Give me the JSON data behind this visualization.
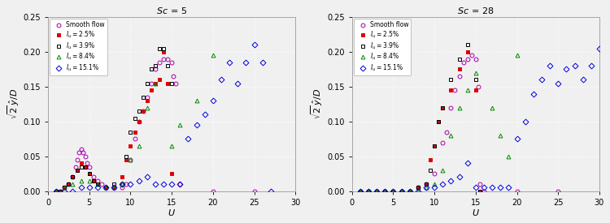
{
  "title_left": "Sc = 5",
  "title_right": "Sc = 28",
  "xlabel": "U",
  "xlim": [
    0,
    30
  ],
  "ylim": [
    0,
    0.25
  ],
  "xticks": [
    0,
    5,
    10,
    15,
    20,
    25,
    30
  ],
  "yticks": [
    0,
    0.05,
    0.1,
    0.15,
    0.2,
    0.25
  ],
  "legend_labels": [
    "Smooth flow",
    "I_u = 2.5%",
    "I_u = 3.9%",
    "I_u = 8.4%",
    "I_u = 15.1%"
  ],
  "colors": [
    "#aa00aa",
    "#dd0000",
    "#000000",
    "#008800",
    "#0000dd"
  ],
  "markers": [
    "o",
    "s",
    "s",
    "^",
    "D"
  ],
  "markerfacecolors": [
    "none",
    "#dd0000",
    "none",
    "none",
    "none"
  ],
  "sc5": {
    "smooth": {
      "U": [
        1.0,
        1.5,
        2.0,
        2.5,
        3.0,
        3.3,
        3.5,
        3.7,
        4.0,
        4.2,
        4.5,
        4.7,
        5.0,
        5.5,
        6.0,
        6.5,
        7.0,
        8.0,
        9.0,
        9.5,
        10.0,
        10.5,
        11.0,
        11.5,
        12.0,
        12.5,
        13.0,
        13.5,
        14.0,
        14.5,
        15.0,
        15.2,
        15.5,
        16.0,
        20.0,
        25.0
      ],
      "A": [
        0.0,
        0.0,
        0.005,
        0.01,
        0.02,
        0.035,
        0.045,
        0.055,
        0.06,
        0.055,
        0.05,
        0.04,
        0.035,
        0.02,
        0.015,
        0.01,
        0.005,
        0.005,
        0.005,
        0.01,
        0.045,
        0.075,
        0.1,
        0.115,
        0.135,
        0.155,
        0.175,
        0.185,
        0.19,
        0.19,
        0.185,
        0.165,
        0.155,
        0.01,
        0.0,
        0.0
      ]
    },
    "Iu25": {
      "U": [
        1.0,
        1.5,
        2.0,
        2.5,
        3.0,
        3.5,
        4.0,
        4.5,
        5.0,
        5.5,
        6.0,
        7.0,
        8.0,
        9.0,
        9.5,
        10.0,
        10.5,
        11.0,
        11.5,
        12.0,
        12.5,
        13.0,
        13.5,
        14.0,
        14.5,
        15.0
      ],
      "A": [
        0.0,
        0.0,
        0.005,
        0.01,
        0.02,
        0.03,
        0.04,
        0.035,
        0.025,
        0.015,
        0.01,
        0.005,
        0.005,
        0.02,
        0.045,
        0.065,
        0.085,
        0.1,
        0.115,
        0.13,
        0.145,
        0.155,
        0.16,
        0.2,
        0.155,
        0.025
      ]
    },
    "Iu39": {
      "U": [
        1.0,
        1.5,
        2.0,
        2.5,
        3.0,
        3.5,
        4.0,
        4.5,
        5.0,
        5.5,
        6.0,
        7.0,
        8.0,
        9.0,
        9.5,
        10.0,
        10.5,
        11.0,
        11.5,
        12.0,
        12.5,
        13.0,
        13.5,
        14.0,
        14.5,
        15.0
      ],
      "A": [
        0.0,
        0.0,
        0.005,
        0.01,
        0.02,
        0.03,
        0.035,
        0.035,
        0.025,
        0.015,
        0.01,
        0.005,
        0.01,
        0.01,
        0.05,
        0.085,
        0.105,
        0.115,
        0.135,
        0.155,
        0.175,
        0.18,
        0.205,
        0.205,
        0.18,
        0.155
      ]
    },
    "Iu84": {
      "U": [
        1.0,
        2.0,
        3.0,
        4.0,
        5.0,
        6.0,
        7.0,
        8.0,
        9.0,
        10.0,
        11.0,
        12.0,
        13.0,
        15.0,
        16.0,
        18.0,
        20.0
      ],
      "A": [
        0.0,
        0.005,
        0.01,
        0.015,
        0.015,
        0.01,
        0.005,
        0.005,
        0.01,
        0.045,
        0.065,
        0.12,
        0.155,
        0.065,
        0.095,
        0.13,
        0.195
      ]
    },
    "Iu151": {
      "U": [
        1.0,
        2.0,
        3.0,
        4.0,
        5.0,
        6.0,
        7.0,
        8.0,
        9.0,
        10.0,
        11.0,
        12.0,
        13.0,
        14.0,
        15.0,
        16.0,
        17.0,
        18.0,
        19.0,
        20.0,
        21.0,
        22.0,
        23.0,
        24.0,
        25.0,
        26.0,
        27.0
      ],
      "A": [
        0.0,
        0.0,
        0.0,
        0.005,
        0.005,
        0.005,
        0.005,
        0.005,
        0.01,
        0.01,
        0.015,
        0.02,
        0.01,
        0.01,
        0.01,
        0.01,
        0.075,
        0.095,
        0.11,
        0.13,
        0.16,
        0.185,
        0.155,
        0.185,
        0.21,
        0.185,
        0.0
      ]
    }
  },
  "sc28": {
    "smooth": {
      "U": [
        1.0,
        2.0,
        3.0,
        4.0,
        5.0,
        6.0,
        7.0,
        8.0,
        9.0,
        10.0,
        11.0,
        11.5,
        12.0,
        12.5,
        13.0,
        13.5,
        14.0,
        14.5,
        15.0,
        15.3,
        15.5,
        16.0,
        20.0,
        25.0
      ],
      "A": [
        0.0,
        0.0,
        0.0,
        0.0,
        0.0,
        0.0,
        0.0,
        0.005,
        0.01,
        0.025,
        0.07,
        0.085,
        0.12,
        0.145,
        0.165,
        0.185,
        0.19,
        0.195,
        0.19,
        0.15,
        0.01,
        0.0,
        0.0,
        0.0
      ]
    },
    "Iu25": {
      "U": [
        1.0,
        2.0,
        3.0,
        4.0,
        5.0,
        6.0,
        7.0,
        8.0,
        9.0,
        9.5,
        10.0,
        10.5,
        11.0,
        12.0,
        13.0,
        14.0,
        15.0,
        15.5
      ],
      "A": [
        0.0,
        0.0,
        0.0,
        0.0,
        0.0,
        0.0,
        0.0,
        0.005,
        0.01,
        0.045,
        0.065,
        0.1,
        0.12,
        0.145,
        0.175,
        0.2,
        0.145,
        0.0
      ]
    },
    "Iu39": {
      "U": [
        1.0,
        2.0,
        3.0,
        4.0,
        5.0,
        6.0,
        7.0,
        8.0,
        9.0,
        9.5,
        10.0,
        10.5,
        11.0,
        12.0,
        13.0,
        14.0,
        15.0,
        15.5
      ],
      "A": [
        0.0,
        0.0,
        0.0,
        0.0,
        0.0,
        0.0,
        0.0,
        0.005,
        0.01,
        0.03,
        0.065,
        0.1,
        0.12,
        0.16,
        0.19,
        0.21,
        0.16,
        0.0
      ]
    },
    "Iu84": {
      "U": [
        1.0,
        2.0,
        3.0,
        4.0,
        5.0,
        6.0,
        7.0,
        8.0,
        9.0,
        10.0,
        11.0,
        12.0,
        13.0,
        14.0,
        15.0,
        17.0,
        18.0,
        19.0,
        20.0
      ],
      "A": [
        0.0,
        0.0,
        0.0,
        0.0,
        0.0,
        0.0,
        0.0,
        0.0,
        0.005,
        0.01,
        0.03,
        0.08,
        0.12,
        0.145,
        0.17,
        0.12,
        0.08,
        0.05,
        0.195
      ]
    },
    "Iu151": {
      "U": [
        1.0,
        2.0,
        3.0,
        4.0,
        5.0,
        6.0,
        7.0,
        8.0,
        9.0,
        10.0,
        11.0,
        12.0,
        13.0,
        14.0,
        15.0,
        16.0,
        17.0,
        18.0,
        19.0,
        20.0,
        21.0,
        22.0,
        23.0,
        24.0,
        25.0,
        26.0,
        27.0,
        28.0,
        29.0,
        30.0
      ],
      "A": [
        0.0,
        0.0,
        0.0,
        0.0,
        0.0,
        0.0,
        0.0,
        0.0,
        0.005,
        0.005,
        0.01,
        0.015,
        0.02,
        0.04,
        0.005,
        0.005,
        0.005,
        0.005,
        0.005,
        0.075,
        0.1,
        0.14,
        0.16,
        0.18,
        0.155,
        0.175,
        0.18,
        0.16,
        0.18,
        0.205
      ]
    }
  },
  "bg_color": "#f0f0f0",
  "grid_color": "#ffffff",
  "markersize": 3.5,
  "markeredgewidth": 0.7
}
